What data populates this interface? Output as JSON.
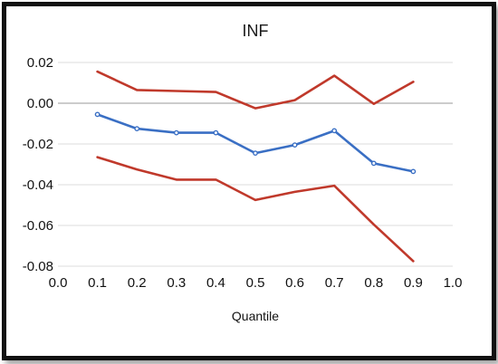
{
  "chart_data": {
    "type": "line",
    "title": "INF",
    "xlabel": "Quantile",
    "ylabel": "",
    "xlim": [
      0.0,
      1.0
    ],
    "ylim": [
      -0.08,
      0.02
    ],
    "x_ticks": [
      "0.0",
      "0.1",
      "0.2",
      "0.3",
      "0.4",
      "0.5",
      "0.6",
      "0.7",
      "0.8",
      "0.9",
      "1.0"
    ],
    "y_ticks": [
      "0.02",
      "0.00",
      "-0.02",
      "-0.04",
      "-0.06",
      "-0.08"
    ],
    "grid": true,
    "legend": "none",
    "x": [
      0.1,
      0.2,
      0.3,
      0.4,
      0.5,
      0.6,
      0.7,
      0.8,
      0.9
    ],
    "series": [
      {
        "color": "#c0392b",
        "marker": false,
        "values": [
          0.0155,
          0.0065,
          0.006,
          0.0055,
          -0.0025,
          0.0015,
          0.0135,
          -0.0003,
          0.0105
        ]
      },
      {
        "color": "#3a6fc4",
        "marker": true,
        "values": [
          -0.0055,
          -0.0125,
          -0.0145,
          -0.0145,
          -0.0245,
          -0.0205,
          -0.0135,
          -0.0295,
          -0.0335
        ]
      },
      {
        "color": "#c0392b",
        "marker": false,
        "values": [
          -0.0265,
          -0.0325,
          -0.0375,
          -0.0375,
          -0.0475,
          -0.0435,
          -0.0405,
          -0.0595,
          -0.0775
        ]
      }
    ]
  }
}
